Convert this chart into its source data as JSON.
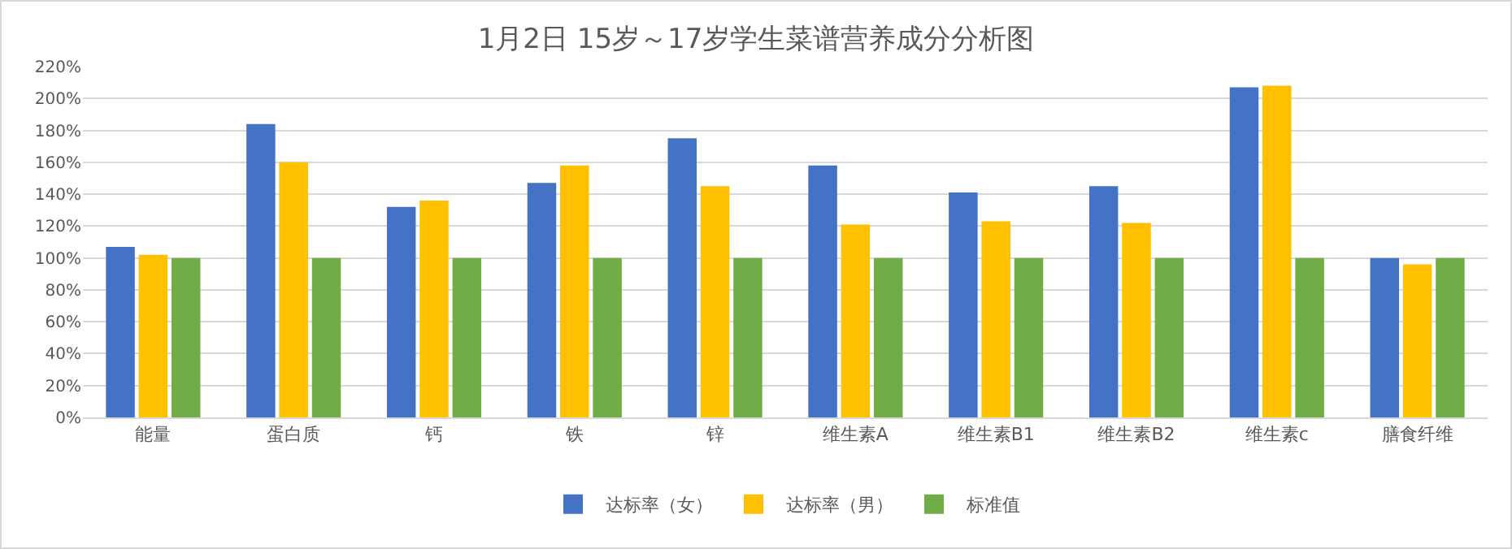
{
  "chart_data": {
    "type": "bar",
    "title": "1月2日 15岁～17岁学生菜谱营养成分分析图",
    "categories": [
      "能量",
      "蛋白质",
      "钙",
      "铁",
      "锌",
      "维生素A",
      "维生素B1",
      "维生素B2",
      "维生素c",
      "膳食纤维"
    ],
    "series": [
      {
        "name": "达标率（女）",
        "color": "#4472c4",
        "values": [
          107,
          184,
          132,
          147,
          175,
          158,
          141,
          145,
          207,
          100
        ]
      },
      {
        "name": "达标率（男）",
        "color": "#ffc000",
        "values": [
          102,
          160,
          136,
          158,
          145,
          121,
          123,
          122,
          208,
          96
        ]
      },
      {
        "name": "标准值",
        "color": "#70ad47",
        "values": [
          100,
          100,
          100,
          100,
          100,
          100,
          100,
          100,
          100,
          100
        ]
      }
    ],
    "ylim": [
      0,
      220
    ],
    "yticks": [
      {
        "value": 0,
        "label": "0%"
      },
      {
        "value": 20,
        "label": "20%"
      },
      {
        "value": 40,
        "label": "40%"
      },
      {
        "value": 60,
        "label": "60%"
      },
      {
        "value": 80,
        "label": "80%"
      },
      {
        "value": 100,
        "label": "100%"
      },
      {
        "value": 120,
        "label": "120%"
      },
      {
        "value": 140,
        "label": "140%"
      },
      {
        "value": 160,
        "label": "160%"
      },
      {
        "value": 180,
        "label": "180%"
      },
      {
        "value": 200,
        "label": "200%"
      },
      {
        "value": 220,
        "label": "220%"
      }
    ],
    "grid": "y",
    "legend": "bottom"
  }
}
